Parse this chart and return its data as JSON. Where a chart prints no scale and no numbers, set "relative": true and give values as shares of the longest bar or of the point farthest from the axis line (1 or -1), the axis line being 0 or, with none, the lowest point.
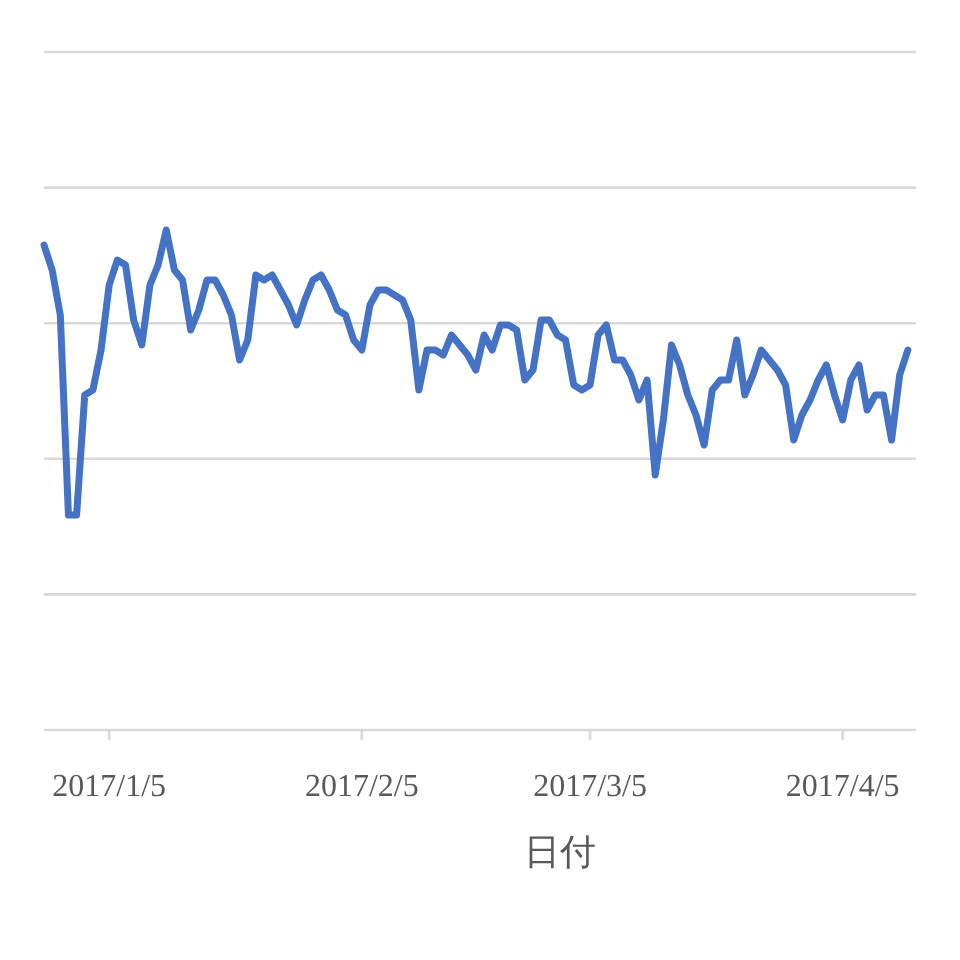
{
  "chart_data": {
    "type": "line",
    "xlabel": "日付",
    "relative": true,
    "grid": "y",
    "marker": "none",
    "line_style": "solid",
    "xlim": [
      "2016-12-28",
      "2017-04-14"
    ],
    "xticks": [
      {
        "value": "2017-01-05",
        "label": "2017/1/5"
      },
      {
        "value": "2017-02-05",
        "label": "2017/2/5"
      },
      {
        "value": "2017-03-05",
        "label": "2017/3/5"
      },
      {
        "value": "2017-04-05",
        "label": "2017/4/5"
      }
    ],
    "x": [
      "2016-12-28",
      "2016-12-29",
      "2016-12-30",
      "2016-12-31",
      "2017-01-01",
      "2017-01-02",
      "2017-01-03",
      "2017-01-04",
      "2017-01-05",
      "2017-01-06",
      "2017-01-07",
      "2017-01-08",
      "2017-01-09",
      "2017-01-10",
      "2017-01-11",
      "2017-01-12",
      "2017-01-13",
      "2017-01-14",
      "2017-01-15",
      "2017-01-16",
      "2017-01-17",
      "2017-01-18",
      "2017-01-19",
      "2017-01-20",
      "2017-01-21",
      "2017-01-22",
      "2017-01-23",
      "2017-01-24",
      "2017-01-25",
      "2017-01-26",
      "2017-01-27",
      "2017-01-28",
      "2017-01-29",
      "2017-01-30",
      "2017-01-31",
      "2017-02-01",
      "2017-02-02",
      "2017-02-03",
      "2017-02-04",
      "2017-02-05",
      "2017-02-06",
      "2017-02-07",
      "2017-02-08",
      "2017-02-09",
      "2017-02-10",
      "2017-02-11",
      "2017-02-12",
      "2017-02-13",
      "2017-02-14",
      "2017-02-15",
      "2017-02-16",
      "2017-02-17",
      "2017-02-18",
      "2017-02-19",
      "2017-02-20",
      "2017-02-21",
      "2017-02-22",
      "2017-02-23",
      "2017-02-24",
      "2017-02-25",
      "2017-02-26",
      "2017-02-27",
      "2017-02-28",
      "2017-03-01",
      "2017-03-02",
      "2017-03-03",
      "2017-03-04",
      "2017-03-05",
      "2017-03-06",
      "2017-03-07",
      "2017-03-08",
      "2017-03-09",
      "2017-03-10",
      "2017-03-11",
      "2017-03-12",
      "2017-03-13",
      "2017-03-14",
      "2017-03-15",
      "2017-03-16",
      "2017-03-17",
      "2017-03-18",
      "2017-03-19",
      "2017-03-20",
      "2017-03-21",
      "2017-03-22",
      "2017-03-23",
      "2017-03-24",
      "2017-03-25",
      "2017-03-26",
      "2017-03-27",
      "2017-03-28",
      "2017-03-29",
      "2017-03-30",
      "2017-03-31",
      "2017-04-01",
      "2017-04-02",
      "2017-04-03",
      "2017-04-04",
      "2017-04-05",
      "2017-04-06",
      "2017-04-07",
      "2017-04-08",
      "2017-04-09",
      "2017-04-10",
      "2017-04-11",
      "2017-04-12",
      "2017-04-13"
    ],
    "series": [
      {
        "color": "#4472c4",
        "values": [
          0.97,
          0.92,
          0.83,
          0.43,
          0.43,
          0.67,
          0.68,
          0.76,
          0.89,
          0.94,
          0.93,
          0.82,
          0.77,
          0.89,
          0.93,
          1.0,
          0.92,
          0.9,
          0.8,
          0.84,
          0.9,
          0.9,
          0.87,
          0.83,
          0.74,
          0.78,
          0.91,
          0.9,
          0.91,
          0.88,
          0.85,
          0.81,
          0.86,
          0.9,
          0.91,
          0.88,
          0.84,
          0.83,
          0.78,
          0.76,
          0.85,
          0.88,
          0.88,
          0.87,
          0.86,
          0.82,
          0.68,
          0.76,
          0.76,
          0.75,
          0.79,
          0.77,
          0.75,
          0.72,
          0.79,
          0.76,
          0.81,
          0.81,
          0.8,
          0.7,
          0.72,
          0.82,
          0.82,
          0.79,
          0.78,
          0.69,
          0.68,
          0.69,
          0.79,
          0.81,
          0.74,
          0.74,
          0.71,
          0.66,
          0.7,
          0.51,
          0.62,
          0.77,
          0.73,
          0.67,
          0.63,
          0.57,
          0.68,
          0.7,
          0.7,
          0.78,
          0.67,
          0.71,
          0.76,
          0.74,
          0.72,
          0.69,
          0.58,
          0.63,
          0.66,
          0.7,
          0.73,
          0.67,
          0.62,
          0.7,
          0.73,
          0.64,
          0.67,
          0.67,
          0.58,
          0.71,
          0.76
        ]
      }
    ]
  }
}
